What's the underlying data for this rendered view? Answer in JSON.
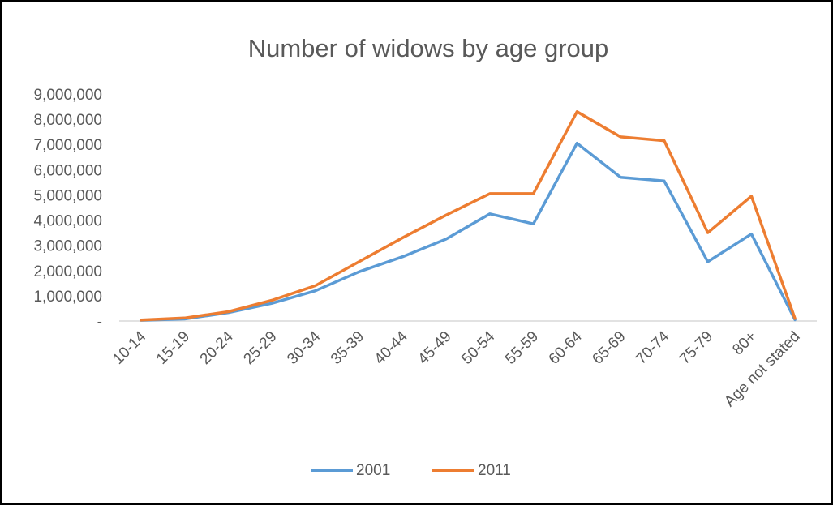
{
  "chart_data": {
    "type": "line",
    "title": "Number of widows by age group",
    "xlabel": "",
    "ylabel": "",
    "categories": [
      "10-14",
      "15-19",
      "20-24",
      "25-29",
      "30-34",
      "35-39",
      "40-44",
      "45-49",
      "50-54",
      "55-59",
      "60-64",
      "65-69",
      "70-74",
      "75-79",
      "80+",
      "Age not stated"
    ],
    "y_ticks": [
      {
        "value": 0,
        "label": "-"
      },
      {
        "value": 1000000,
        "label": "1,000,000"
      },
      {
        "value": 2000000,
        "label": "2,000,000"
      },
      {
        "value": 3000000,
        "label": "3,000,000"
      },
      {
        "value": 4000000,
        "label": "4,000,000"
      },
      {
        "value": 5000000,
        "label": "5,000,000"
      },
      {
        "value": 6000000,
        "label": "6,000,000"
      },
      {
        "value": 7000000,
        "label": "7,000,000"
      },
      {
        "value": 8000000,
        "label": "8,000,000"
      },
      {
        "value": 9000000,
        "label": "9,000,000"
      }
    ],
    "ylim": [
      0,
      9000000
    ],
    "grid": false,
    "legend_position": "bottom",
    "series": [
      {
        "name": "2001",
        "color": "#5B9BD5",
        "values": [
          30000,
          80000,
          330000,
          700000,
          1200000,
          1950000,
          2550000,
          3250000,
          4250000,
          3850000,
          7050000,
          5700000,
          5550000,
          2350000,
          3450000,
          50000
        ]
      },
      {
        "name": "2011",
        "color": "#ED7D31",
        "values": [
          40000,
          120000,
          370000,
          820000,
          1400000,
          2350000,
          3300000,
          4200000,
          5050000,
          5050000,
          8300000,
          7300000,
          7150000,
          3500000,
          4950000,
          100000
        ]
      }
    ]
  }
}
